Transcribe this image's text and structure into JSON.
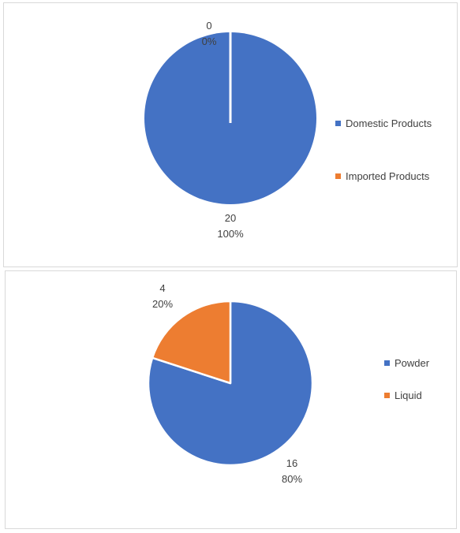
{
  "chart_data": [
    {
      "type": "pie",
      "slices": [
        {
          "name": "Domestic Products",
          "value": 20,
          "percent": "100%",
          "color": "#4472C4"
        },
        {
          "name": "Imported Products",
          "value": 0,
          "percent": "0%",
          "color": "#ED7D31"
        }
      ],
      "legend_position": "right"
    },
    {
      "type": "pie",
      "slices": [
        {
          "name": "Powder",
          "value": 16,
          "percent": "80%",
          "color": "#4472C4"
        },
        {
          "name": "Liquid",
          "value": 4,
          "percent": "20%",
          "color": "#ED7D31"
        }
      ],
      "legend_position": "right"
    }
  ]
}
